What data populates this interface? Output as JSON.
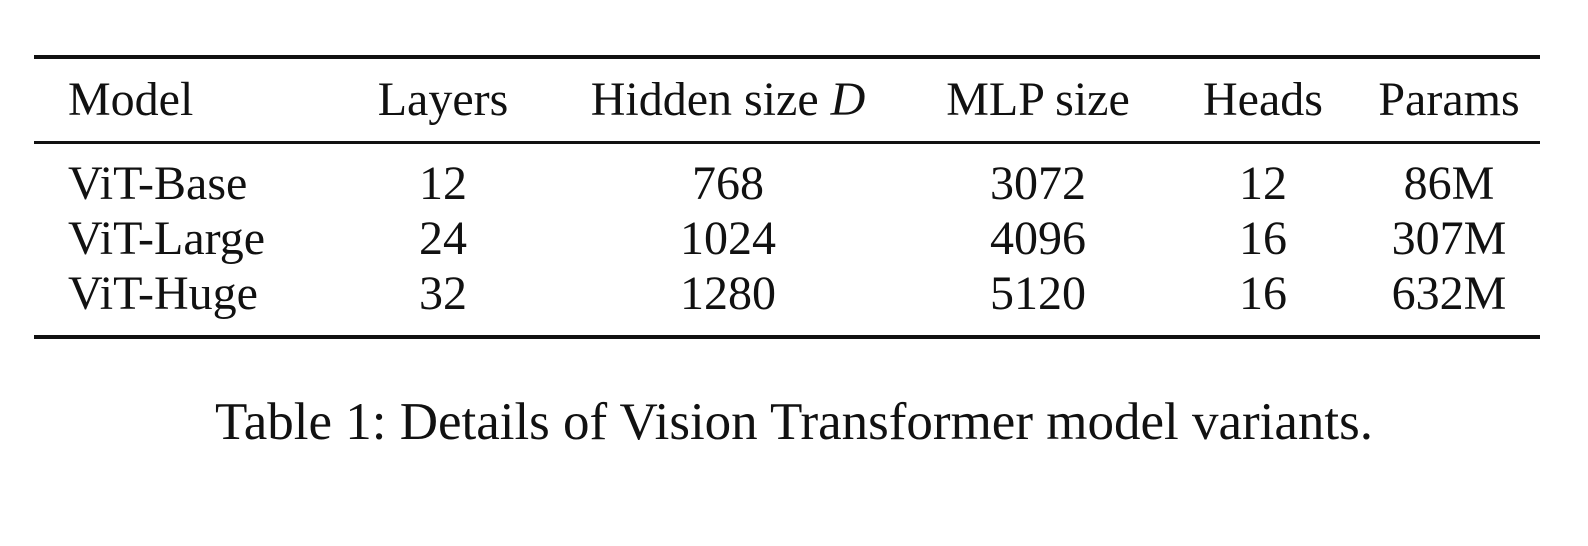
{
  "table": {
    "headers": {
      "model": "Model",
      "layers": "Layers",
      "hidden_prefix": "Hidden size ",
      "hidden_var": "D",
      "mlp": "MLP size",
      "heads": "Heads",
      "params": "Params"
    },
    "rows": [
      {
        "model": "ViT-Base",
        "layers": "12",
        "hidden": "768",
        "mlp": "3072",
        "heads": "12",
        "params": "86M"
      },
      {
        "model": "ViT-Large",
        "layers": "24",
        "hidden": "1024",
        "mlp": "4096",
        "heads": "16",
        "params": "307M"
      },
      {
        "model": "ViT-Huge",
        "layers": "32",
        "hidden": "1280",
        "mlp": "5120",
        "heads": "16",
        "params": "632M"
      }
    ]
  },
  "caption": "Table 1: Details of Vision Transformer model variants."
}
